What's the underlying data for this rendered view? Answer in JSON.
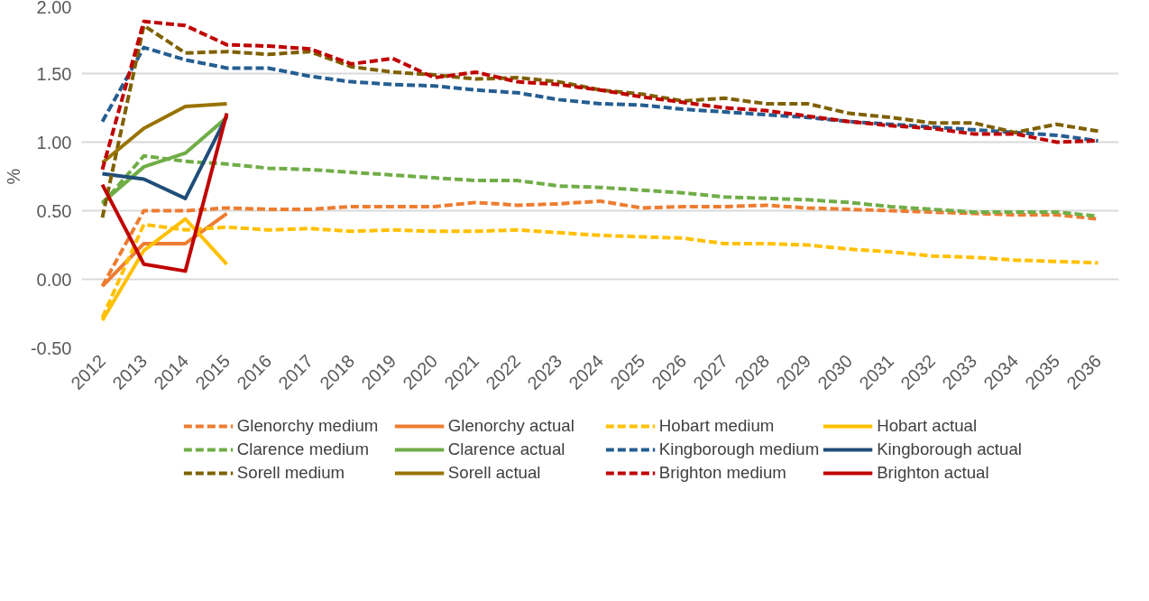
{
  "chart_data": {
    "type": "line",
    "ylabel": "%",
    "categories": [
      "2012",
      "2013",
      "2014",
      "2015",
      "2016",
      "2017",
      "2018",
      "2019",
      "2020",
      "2021",
      "2022",
      "2023",
      "2024",
      "2025",
      "2026",
      "2027",
      "2028",
      "2029",
      "2030",
      "2031",
      "2032",
      "2033",
      "2034",
      "2035",
      "2036"
    ],
    "ylim": [
      -0.5,
      2.0
    ],
    "yticks": [
      {
        "value": -0.5,
        "label": "-0.50"
      },
      {
        "value": 0,
        "label": "0.00"
      },
      {
        "value": 0.5,
        "label": "0.50"
      },
      {
        "value": 1.0,
        "label": "1.00"
      },
      {
        "value": 1.5,
        "label": "1.50"
      },
      {
        "value": 2.0,
        "label": "2.00"
      }
    ],
    "grid": "y",
    "legend": "bottom",
    "marker": "none",
    "series": [
      {
        "name": "Glenorchy medium",
        "color": "#ed7d31",
        "line_style": "dashed",
        "values": [
          -0.05,
          0.5,
          0.5,
          0.52,
          0.51,
          0.51,
          0.53,
          0.53,
          0.53,
          0.56,
          0.54,
          0.55,
          0.57,
          0.52,
          0.53,
          0.53,
          0.54,
          0.52,
          0.51,
          0.5,
          0.49,
          0.48,
          0.47,
          0.47,
          0.44
        ]
      },
      {
        "name": "Glenorchy actual",
        "color": "#ed7d31",
        "line_style": "solid",
        "values": [
          -0.05,
          0.26,
          0.26,
          0.48,
          null,
          null,
          null,
          null,
          null,
          null,
          null,
          null,
          null,
          null,
          null,
          null,
          null,
          null,
          null,
          null,
          null,
          null,
          null,
          null,
          null
        ]
      },
      {
        "name": "Hobart medium",
        "color": "#ffc000",
        "line_style": "dashed",
        "values": [
          -0.28,
          0.4,
          0.36,
          0.38,
          0.36,
          0.37,
          0.35,
          0.36,
          0.35,
          0.35,
          0.36,
          0.34,
          0.32,
          0.31,
          0.3,
          0.26,
          0.26,
          0.25,
          0.22,
          0.2,
          0.17,
          0.16,
          0.14,
          0.13,
          0.12
        ]
      },
      {
        "name": "Hobart actual",
        "color": "#ffc000",
        "line_style": "solid",
        "values": [
          -0.3,
          0.21,
          0.44,
          0.11,
          null,
          null,
          null,
          null,
          null,
          null,
          null,
          null,
          null,
          null,
          null,
          null,
          null,
          null,
          null,
          null,
          null,
          null,
          null,
          null,
          null
        ]
      },
      {
        "name": "Clarence medium",
        "color": "#70ad47",
        "line_style": "dashed",
        "values": [
          0.55,
          0.9,
          0.86,
          0.84,
          0.81,
          0.8,
          0.78,
          0.76,
          0.74,
          0.72,
          0.72,
          0.68,
          0.67,
          0.65,
          0.63,
          0.6,
          0.59,
          0.58,
          0.56,
          0.53,
          0.51,
          0.49,
          0.49,
          0.49,
          0.46
        ]
      },
      {
        "name": "Clarence actual",
        "color": "#70ad47",
        "line_style": "solid",
        "values": [
          0.56,
          0.82,
          0.92,
          1.18,
          null,
          null,
          null,
          null,
          null,
          null,
          null,
          null,
          null,
          null,
          null,
          null,
          null,
          null,
          null,
          null,
          null,
          null,
          null,
          null,
          null
        ]
      },
      {
        "name": "Kingborough medium",
        "color": "#255e91",
        "line_style": "dashed",
        "values": [
          1.15,
          1.69,
          1.6,
          1.54,
          1.54,
          1.48,
          1.44,
          1.42,
          1.41,
          1.38,
          1.36,
          1.31,
          1.28,
          1.27,
          1.24,
          1.22,
          1.2,
          1.18,
          1.15,
          1.13,
          1.11,
          1.09,
          1.07,
          1.05,
          1.01
        ]
      },
      {
        "name": "Kingborough actual",
        "color": "#1f4e79",
        "line_style": "solid",
        "values": [
          0.77,
          0.73,
          0.59,
          1.19,
          null,
          null,
          null,
          null,
          null,
          null,
          null,
          null,
          null,
          null,
          null,
          null,
          null,
          null,
          null,
          null,
          null,
          null,
          null,
          null,
          null
        ]
      },
      {
        "name": "Sorell medium",
        "color": "#7f6000",
        "line_style": "dashed",
        "values": [
          0.45,
          1.85,
          1.65,
          1.66,
          1.64,
          1.66,
          1.55,
          1.51,
          1.49,
          1.46,
          1.47,
          1.44,
          1.38,
          1.35,
          1.3,
          1.32,
          1.28,
          1.28,
          1.21,
          1.18,
          1.14,
          1.14,
          1.07,
          1.13,
          1.08
        ]
      },
      {
        "name": "Sorell actual",
        "color": "#997300",
        "line_style": "solid",
        "values": [
          0.85,
          1.1,
          1.26,
          1.28,
          null,
          null,
          null,
          null,
          null,
          null,
          null,
          null,
          null,
          null,
          null,
          null,
          null,
          null,
          null,
          null,
          null,
          null,
          null,
          null,
          null
        ]
      },
      {
        "name": "Brighton medium",
        "color": "#c00000",
        "line_style": "dashed",
        "values": [
          0.8,
          1.88,
          1.85,
          1.71,
          1.7,
          1.68,
          1.57,
          1.61,
          1.47,
          1.51,
          1.44,
          1.42,
          1.38,
          1.33,
          1.29,
          1.25,
          1.23,
          1.19,
          1.15,
          1.12,
          1.1,
          1.06,
          1.06,
          1.0,
          1.01
        ]
      },
      {
        "name": "Brighton actual",
        "color": "#c00000",
        "line_style": "solid",
        "values": [
          0.69,
          0.11,
          0.06,
          1.21,
          null,
          null,
          null,
          null,
          null,
          null,
          null,
          null,
          null,
          null,
          null,
          null,
          null,
          null,
          null,
          null,
          null,
          null,
          null,
          null,
          null
        ]
      }
    ]
  }
}
